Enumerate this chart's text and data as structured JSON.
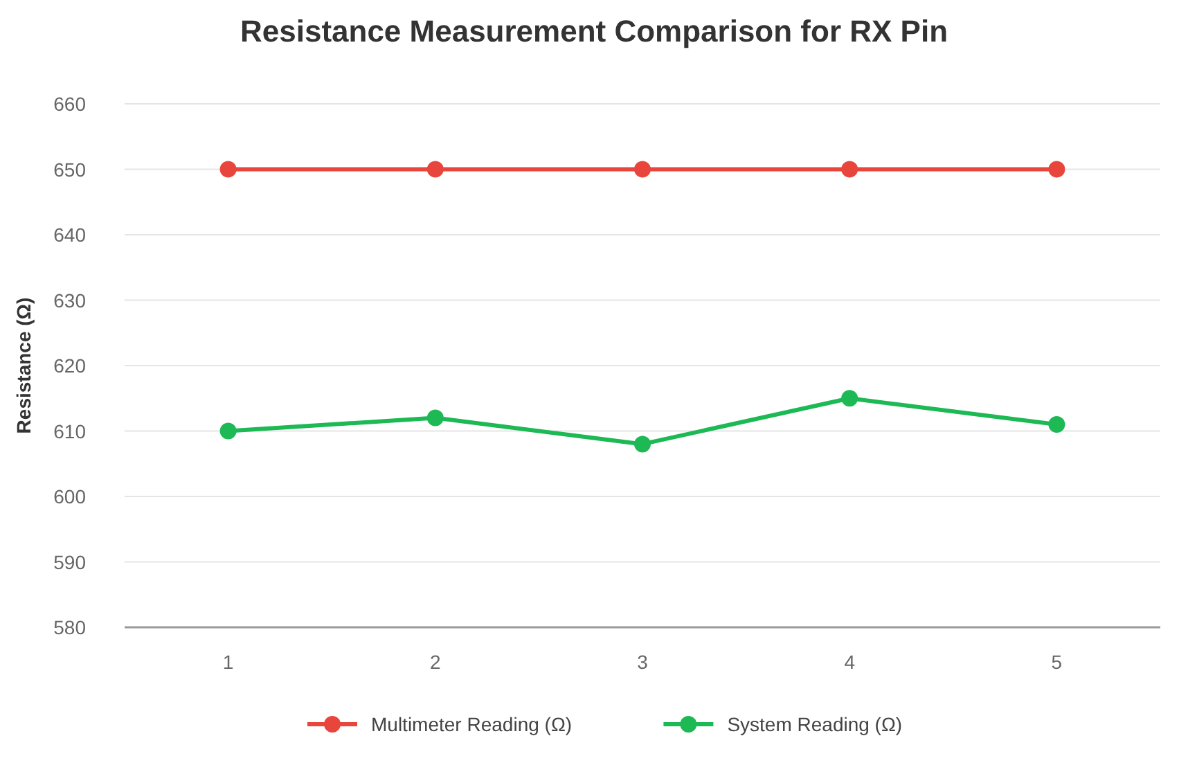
{
  "chart_data": {
    "type": "line",
    "title": "Resistance Measurement Comparison for RX Pin",
    "ylabel": "Resistance (Ω)",
    "categories": [
      "1",
      "2",
      "3",
      "4",
      "5"
    ],
    "series": [
      {
        "name": "Multimeter Reading (Ω)",
        "color": "#e8453c",
        "values": [
          650,
          650,
          650,
          650,
          650
        ]
      },
      {
        "name": "System Reading (Ω)",
        "color": "#1db954",
        "values": [
          610,
          612,
          608,
          615,
          611
        ]
      }
    ],
    "ylim": [
      580,
      660
    ],
    "yticks": [
      580,
      590,
      600,
      610,
      620,
      630,
      640,
      650,
      660
    ],
    "grid": "y",
    "legend": "bottom",
    "marker": "circle",
    "line_style": "solid"
  }
}
